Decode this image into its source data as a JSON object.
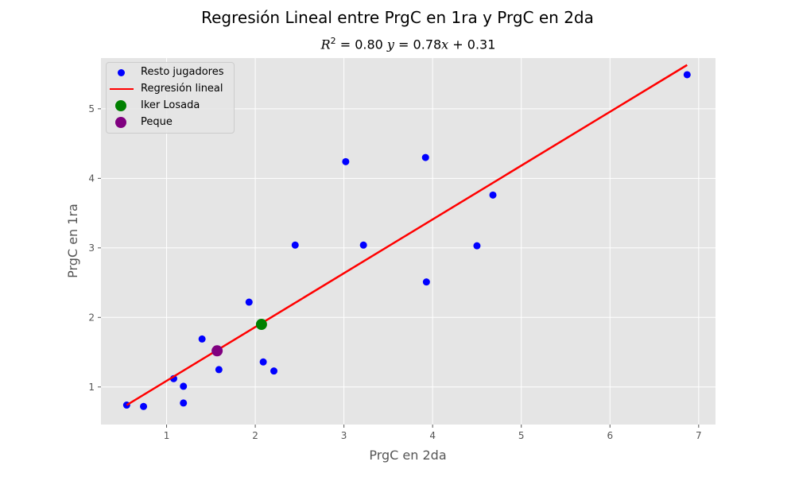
{
  "chart_data": {
    "type": "scatter",
    "title": "Regresión Lineal entre PrgC en 1ra y PrgC en 2da",
    "subtitle": {
      "r2_prefix": "R",
      "r2_exp": "2",
      "r2_value": " = 0.80 ",
      "eq_y": "y",
      "eq_mid": " = 0.78",
      "eq_x": "x",
      "eq_tail": " + 0.31"
    },
    "xlabel": "PrgC en 2da",
    "ylabel": "PrgC en 1ra",
    "xlim": [
      0.26,
      7.19
    ],
    "ylim": [
      0.46,
      5.73
    ],
    "xticks": [
      1,
      2,
      3,
      4,
      5,
      6,
      7
    ],
    "yticks": [
      1,
      2,
      3,
      4,
      5
    ],
    "grid": true,
    "legend_placement": "top-left",
    "colors": {
      "background": "#e5e5e5",
      "grid": "#ffffff",
      "points": "#0000ff",
      "regression": "#ff0000",
      "iker": "#008000",
      "peque": "#800080"
    },
    "series": [
      {
        "name": "Resto jugadores",
        "kind": "scatter",
        "x": [
          0.55,
          0.74,
          1.08,
          1.19,
          1.19,
          1.4,
          1.59,
          1.93,
          2.09,
          2.21,
          2.45,
          3.02,
          3.22,
          3.92,
          3.93,
          4.5,
          4.68,
          6.87
        ],
        "y": [
          0.74,
          0.72,
          1.12,
          1.01,
          0.77,
          1.69,
          1.25,
          2.22,
          1.36,
          1.23,
          3.04,
          4.24,
          3.04,
          4.3,
          2.51,
          3.03,
          3.76,
          5.49
        ]
      },
      {
        "name": "Regresión lineal",
        "kind": "line",
        "x": [
          0.55,
          6.87
        ],
        "y": [
          0.74,
          5.63
        ]
      },
      {
        "name": "Iker Losada",
        "kind": "highlight",
        "x": [
          2.07
        ],
        "y": [
          1.9
        ]
      },
      {
        "name": "Peque",
        "kind": "highlight",
        "x": [
          1.57
        ],
        "y": [
          1.52
        ]
      }
    ]
  }
}
